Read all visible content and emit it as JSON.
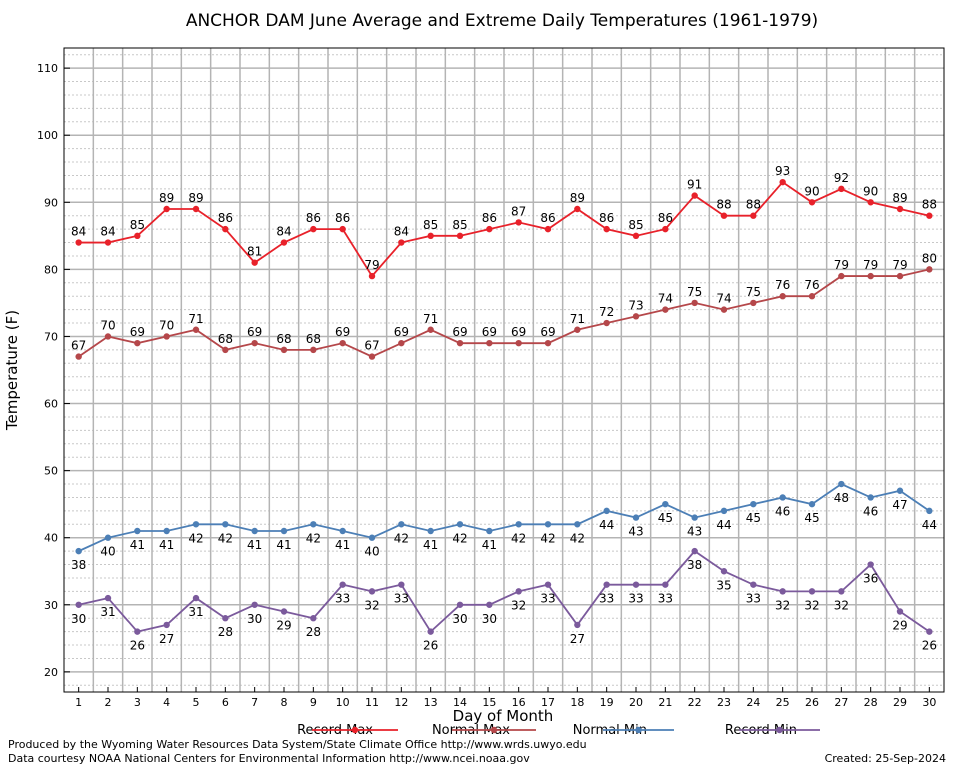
{
  "chart_data": {
    "type": "line",
    "title": "ANCHOR DAM June Average and Extreme Daily Temperatures (1961-1979)",
    "xlabel": "Day of Month",
    "ylabel": "Temperature (F)",
    "x": [
      1,
      2,
      3,
      4,
      5,
      6,
      7,
      8,
      9,
      10,
      11,
      12,
      13,
      14,
      15,
      16,
      17,
      18,
      19,
      20,
      21,
      22,
      23,
      24,
      25,
      26,
      27,
      28,
      29,
      30
    ],
    "xlim": [
      0.5,
      30.5
    ],
    "ylim": [
      17,
      113
    ],
    "yticks": [
      20,
      30,
      40,
      50,
      60,
      70,
      80,
      90,
      100,
      110
    ],
    "grid": true,
    "legend_position": "bottom",
    "series": [
      {
        "name": "Record Max",
        "color": "#e8212a",
        "values": [
          84,
          84,
          85,
          89,
          89,
          86,
          81,
          84,
          86,
          86,
          79,
          84,
          85,
          85,
          86,
          87,
          86,
          89,
          86,
          85,
          86,
          91,
          88,
          88,
          93,
          90,
          92,
          90,
          89,
          88
        ]
      },
      {
        "name": "Normal Max",
        "color": "#b5474a",
        "values": [
          67,
          70,
          69,
          70,
          71,
          68,
          69,
          68,
          68,
          69,
          67,
          69,
          71,
          69,
          69,
          69,
          69,
          71,
          72,
          73,
          74,
          75,
          74,
          75,
          76,
          76,
          79,
          79,
          79,
          80
        ]
      },
      {
        "name": "Normal Min",
        "color": "#4c7fb6",
        "values": [
          38,
          40,
          41,
          41,
          42,
          42,
          41,
          41,
          42,
          41,
          40,
          42,
          41,
          42,
          41,
          42,
          42,
          42,
          44,
          43,
          45,
          43,
          44,
          45,
          46,
          45,
          48,
          46,
          47,
          44
        ]
      },
      {
        "name": "Record Min",
        "color": "#7b5a9c",
        "values": [
          30,
          31,
          26,
          27,
          31,
          28,
          30,
          29,
          28,
          33,
          32,
          33,
          26,
          30,
          30,
          32,
          33,
          27,
          33,
          33,
          33,
          38,
          35,
          33,
          32,
          32,
          32,
          36,
          29,
          26
        ]
      }
    ]
  },
  "footer": {
    "produced_by": "Produced by the Wyoming Water Resources Data System/State Climate Office http://www.wrds.uwyo.edu",
    "data_courtesy": "Data courtesy NOAA National Centers for Environmental Information http://www.ncei.noaa.gov",
    "created": "Created:  25-Sep-2024"
  }
}
